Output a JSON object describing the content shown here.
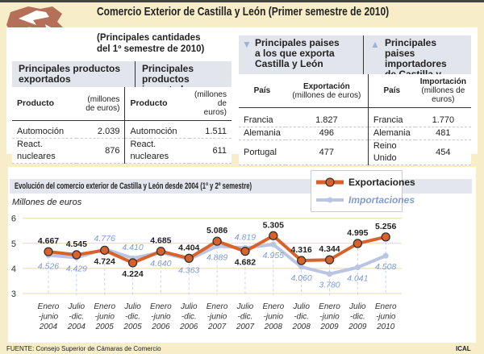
{
  "title": "Comercio Exterior de Castilla y León (Primer semestre de 2010)",
  "subtitle": [
    "(Principales cantidades",
    "del 1º semestre de 2010)"
  ],
  "products_exported": {
    "heading": [
      "Principales productos",
      "exportados"
    ],
    "col1": "Producto",
    "col2": [
      "(millones",
      "de euros)"
    ],
    "rows": [
      {
        "name": "Automoción",
        "value": "2.039"
      },
      {
        "name": "React. nucleares",
        "value": "876"
      }
    ]
  },
  "products_imported": {
    "heading": [
      "Principales productos",
      "importados"
    ],
    "col1": "Producto",
    "col2": [
      "(millones",
      "de euros)"
    ],
    "rows": [
      {
        "name": "Automoción",
        "value": "1.511"
      },
      {
        "name": "React. nucleares",
        "value": "611"
      }
    ]
  },
  "export_countries": {
    "heading": [
      "Principales paises",
      "a los que exporta",
      "Castilla y León"
    ],
    "col1": "País",
    "col2": [
      "Exportación",
      "(millones de euros)"
    ],
    "rows": [
      {
        "name": "Francia",
        "value": "1.827"
      },
      {
        "name": "Alemania",
        "value": "496"
      },
      {
        "name": "Portugal",
        "value": "477"
      }
    ]
  },
  "import_countries": {
    "heading": [
      "Principales paises",
      "importadores",
      "de Castilla y León"
    ],
    "col1": "País",
    "col2": [
      "Importación",
      "(millones de euros)"
    ],
    "rows": [
      {
        "name": "Francia",
        "value": "1.770"
      },
      {
        "name": "Alemania",
        "value": "481"
      },
      {
        "name": "Reino Unido",
        "value": "454"
      }
    ]
  },
  "colors": {
    "exports": "#d9622b",
    "imports": "#b9c5e2",
    "imports_label": "#7f9bd0",
    "triangle": "#9fb2d6",
    "map": "#b5705a"
  },
  "footer": "FUENTE: Consejo Superior de Cámaras de Comercio",
  "credit": "ICAL",
  "chart_data": {
    "type": "line",
    "title": "Evolución del comercio exterior de Castilla y León desde 2004 (1º y 2º semestre)",
    "ylabel": "Millones de euros",
    "ylim": [
      3,
      6
    ],
    "yticks": [
      "3",
      "4",
      "5",
      "6"
    ],
    "grid": true,
    "legend": "top-right",
    "categories": [
      [
        "Enero",
        "-junio",
        "2004"
      ],
      [
        "Julio",
        "-dic.",
        "2004"
      ],
      [
        "Enero",
        "-junio",
        "2005"
      ],
      [
        "Julio",
        "-dic.",
        "2005"
      ],
      [
        "Enero",
        "-junio",
        "2006"
      ],
      [
        "Julio",
        "-dic.",
        "2006"
      ],
      [
        "Enero",
        "-junio",
        "2007"
      ],
      [
        "Julio",
        "-dic.",
        "2007"
      ],
      [
        "Enero",
        "-junio",
        "2008"
      ],
      [
        "Julio",
        "-dic.",
        "2008"
      ],
      [
        "Enero",
        "-junio",
        "2009"
      ],
      [
        "Julio",
        "-dic.",
        "2009"
      ],
      [
        "Enero",
        "-junio",
        "2010"
      ]
    ],
    "series": [
      {
        "name": "Exportaciones",
        "values": [
          4.667,
          4.545,
          4.724,
          4.224,
          4.685,
          4.404,
          5.086,
          4.682,
          5.305,
          4.316,
          4.344,
          4.995,
          5.256
        ],
        "labels": [
          "4.667",
          "4.545",
          "4.724",
          "4.224",
          "4.685",
          "4.404",
          "5.086",
          "4.682",
          "5.305",
          "4.316",
          "4.344",
          "4.995",
          "5.256"
        ]
      },
      {
        "name": "Importaciones",
        "values": [
          4.526,
          4.429,
          4.776,
          4.41,
          4.64,
          4.363,
          4.889,
          4.819,
          4.955,
          4.06,
          3.78,
          4.041,
          4.508
        ],
        "labels": [
          "4.526",
          "4.429",
          "4.776",
          "4.410",
          "4.640",
          "4.363",
          "4.889",
          "4.819",
          "4.955",
          "4.060",
          "3.780",
          "4.041",
          "4.508"
        ]
      }
    ]
  }
}
